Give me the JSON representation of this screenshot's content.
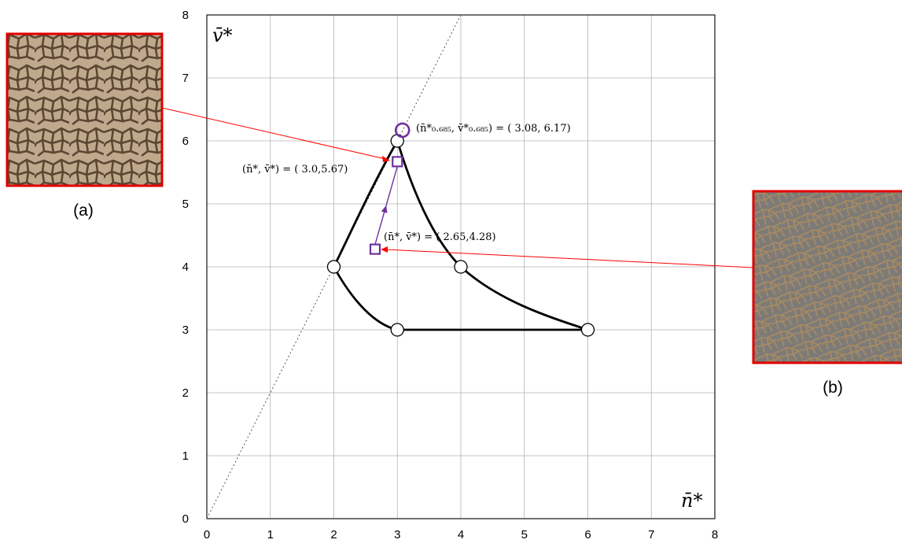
{
  "chart_data": {
    "type": "scatter",
    "xlabel": "n̄*",
    "ylabel": "v̄*",
    "xlim": [
      0,
      8
    ],
    "ylim": [
      0,
      8
    ],
    "xticks": [
      "0",
      "1",
      "2",
      "3",
      "4",
      "5",
      "6",
      "7",
      "8"
    ],
    "yticks": [
      "0",
      "1",
      "2",
      "3",
      "4",
      "5",
      "6",
      "7",
      "8"
    ],
    "grid": true,
    "reference_line": {
      "points": [
        [
          0,
          0
        ],
        [
          4,
          8
        ]
      ],
      "style": "dotted"
    },
    "boundary_vertices": [
      [
        3,
        6
      ],
      [
        2,
        4
      ],
      [
        4,
        4
      ],
      [
        3,
        3
      ],
      [
        6,
        3
      ]
    ],
    "boundary_curves": [
      {
        "from": [
          3,
          6
        ],
        "to": [
          2,
          4
        ],
        "shape": "convex"
      },
      {
        "from": [
          3,
          6
        ],
        "to": [
          6,
          3
        ],
        "shape": "concave",
        "through": [
          4,
          4
        ]
      },
      {
        "from": [
          2,
          4
        ],
        "to": [
          3,
          3
        ],
        "shape": "concave"
      },
      {
        "from": [
          3,
          3
        ],
        "to": [
          6,
          3
        ],
        "shape": "straight"
      }
    ],
    "trajectory": {
      "from": [
        2.65,
        4.28
      ],
      "to": [
        3.0,
        5.67
      ],
      "color": "#7030a0"
    },
    "markers": [
      {
        "x": 3.08,
        "y": 6.17,
        "shape": "circle",
        "color": "#7030a0"
      },
      {
        "x": 3.0,
        "y": 5.67,
        "shape": "square",
        "color": "#7030a0"
      },
      {
        "x": 2.65,
        "y": 4.28,
        "shape": "square",
        "color": "#7030a0"
      }
    ],
    "annotations": [
      {
        "text": "(n̄*₀.₆₈₅, v̄*₀.₆₈₅) = ( 3.08, 6.17)",
        "anchor": [
          3.08,
          6.17
        ]
      },
      {
        "text": "(n̄*, v̄*) = ( 3.0,5.67)",
        "anchor": [
          3.0,
          5.67
        ]
      },
      {
        "text": "(n̄*, v̄*) = ( 2.65,4.28)",
        "anchor": [
          2.65,
          4.28
        ]
      }
    ]
  },
  "panels": [
    {
      "label": "(a)",
      "texture": "cracked-mud-large-cells",
      "points_to": [
        3.0,
        5.67
      ]
    },
    {
      "label": "(b)",
      "texture": "cracked-mud-fine-cells",
      "points_to": [
        2.65,
        4.28
      ]
    }
  ],
  "colors": {
    "curve": "#000000",
    "grid": "#b3b3b3",
    "trajectory": "#7030a0",
    "pointer": "#ff0000",
    "panel_border": "#e00000"
  }
}
